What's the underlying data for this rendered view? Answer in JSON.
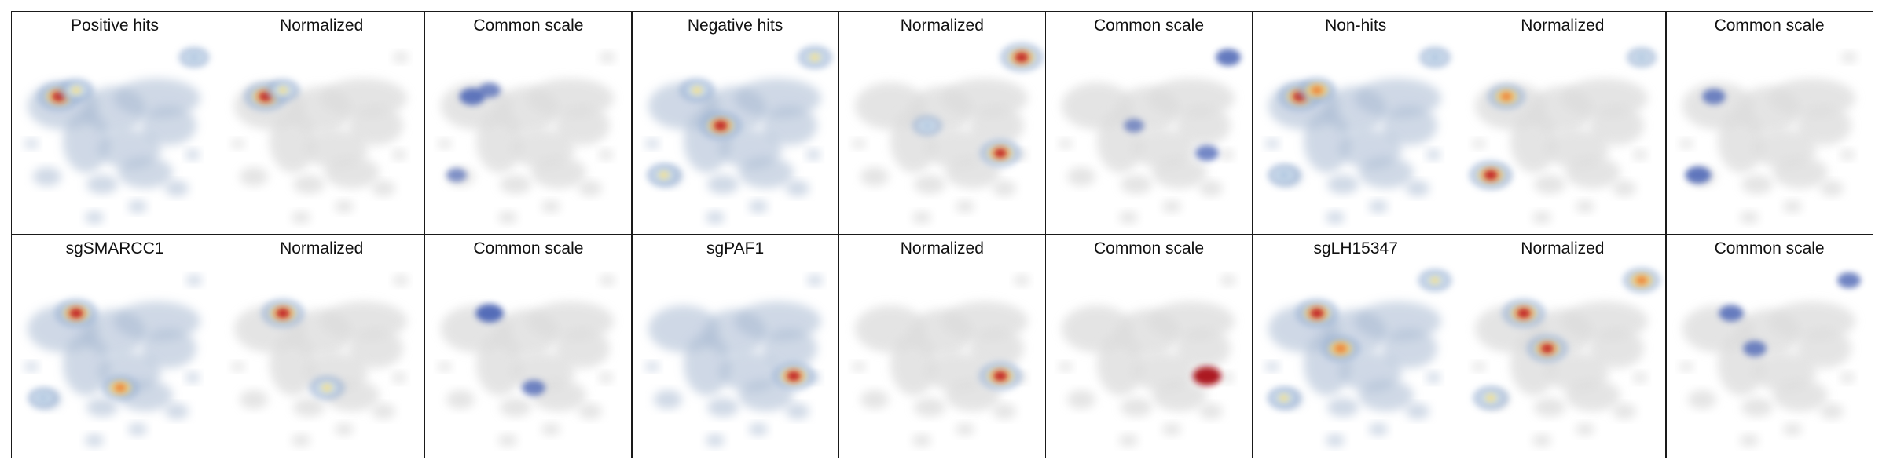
{
  "figure": {
    "rows": [
      {
        "panels": [
          {
            "title": "Positive hits",
            "mode": "raw",
            "hotspots": [
              {
                "region": "left-cluster",
                "level": 1.0
              },
              {
                "region": "upper-left",
                "level": 0.55
              },
              {
                "region": "top-right",
                "level": 0.35
              }
            ]
          },
          {
            "title": "Normalized",
            "mode": "normalized",
            "hotspots": [
              {
                "region": "left-cluster",
                "level": 1.0
              },
              {
                "region": "upper-left",
                "level": 0.5
              }
            ]
          },
          {
            "title": "Common scale",
            "mode": "common",
            "hotspots": [
              {
                "region": "left-cluster",
                "level": 0.8
              },
              {
                "region": "upper-left",
                "level": 0.5
              },
              {
                "region": "bottom-left",
                "level": 0.35
              }
            ]
          },
          {
            "title": "Negative hits",
            "mode": "raw",
            "hotspots": [
              {
                "region": "center",
                "level": 1.0
              },
              {
                "region": "upper-left",
                "level": 0.6
              },
              {
                "region": "top-right",
                "level": 0.55
              },
              {
                "region": "bottom-left",
                "level": 0.55
              }
            ]
          },
          {
            "title": "Normalized",
            "mode": "normalized",
            "hotspots": [
              {
                "region": "top-right",
                "level": 1.0
              },
              {
                "region": "right-lower",
                "level": 0.9
              },
              {
                "region": "center",
                "level": 0.3
              }
            ]
          },
          {
            "title": "Common scale",
            "mode": "common",
            "hotspots": [
              {
                "region": "top-right",
                "level": 0.75
              },
              {
                "region": "right-lower",
                "level": 0.6
              },
              {
                "region": "center",
                "level": 0.35
              }
            ]
          },
          {
            "title": "Non-hits",
            "mode": "raw",
            "hotspots": [
              {
                "region": "left-cluster",
                "level": 1.0
              },
              {
                "region": "upper-left",
                "level": 0.7
              },
              {
                "region": "top-right",
                "level": 0.4
              },
              {
                "region": "bottom-left",
                "level": 0.45
              }
            ]
          },
          {
            "title": "Normalized",
            "mode": "normalized",
            "hotspots": [
              {
                "region": "bottom-left",
                "level": 1.0
              },
              {
                "region": "left-cluster",
                "level": 0.7
              },
              {
                "region": "top-right",
                "level": 0.3
              }
            ]
          },
          {
            "title": "Common scale",
            "mode": "common",
            "hotspots": [
              {
                "region": "bottom-left",
                "level": 0.8
              },
              {
                "region": "left-cluster",
                "level": 0.6
              }
            ]
          }
        ]
      },
      {
        "panels": [
          {
            "title": "sgSMARCC1",
            "mode": "raw",
            "hotspots": [
              {
                "region": "upper-left",
                "level": 1.0
              },
              {
                "region": "middle-lower",
                "level": 0.7
              },
              {
                "region": "bottom-left",
                "level": 0.35
              }
            ]
          },
          {
            "title": "Normalized",
            "mode": "normalized",
            "hotspots": [
              {
                "region": "upper-left",
                "level": 1.0
              },
              {
                "region": "middle-lower",
                "level": 0.6
              }
            ]
          },
          {
            "title": "Common scale",
            "mode": "common",
            "hotspots": [
              {
                "region": "upper-left",
                "level": 0.95
              },
              {
                "region": "middle-lower",
                "level": 0.6
              }
            ]
          },
          {
            "title": "sgPAF1",
            "mode": "raw",
            "hotspots": [
              {
                "region": "right-lower",
                "level": 1.0
              }
            ]
          },
          {
            "title": "Normalized",
            "mode": "normalized",
            "hotspots": [
              {
                "region": "right-lower",
                "level": 1.0
              }
            ]
          },
          {
            "title": "Common scale",
            "mode": "common",
            "hotspots": [
              {
                "region": "right-lower",
                "level": 1.0
              }
            ]
          },
          {
            "title": "sgLH15347",
            "mode": "raw",
            "hotspots": [
              {
                "region": "upper-left",
                "level": 1.0
              },
              {
                "region": "center",
                "level": 0.8
              },
              {
                "region": "top-right",
                "level": 0.5
              },
              {
                "region": "bottom-left",
                "level": 0.5
              }
            ]
          },
          {
            "title": "Normalized",
            "mode": "normalized",
            "hotspots": [
              {
                "region": "upper-left",
                "level": 1.0
              },
              {
                "region": "center",
                "level": 0.9
              },
              {
                "region": "top-right",
                "level": 0.7
              },
              {
                "region": "bottom-left",
                "level": 0.6
              }
            ]
          },
          {
            "title": "Common scale",
            "mode": "common",
            "hotspots": [
              {
                "region": "upper-left",
                "level": 0.7
              },
              {
                "region": "top-right",
                "level": 0.6
              },
              {
                "region": "center",
                "level": 0.6
              }
            ]
          }
        ]
      }
    ]
  }
}
